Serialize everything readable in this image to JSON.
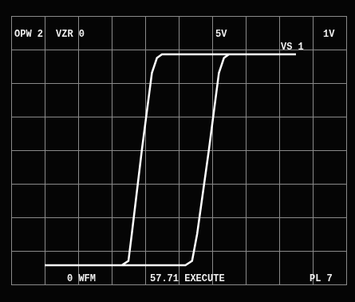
{
  "chart_data": {
    "type": "line",
    "x": [
      1.0,
      5.2,
      5.4,
      5.55,
      5.9,
      6.2,
      6.35,
      6.5,
      8.5,
      4.5,
      4.35,
      4.2,
      3.9,
      3.6,
      3.5,
      3.3,
      1.0
    ],
    "values": [
      0.57,
      0.57,
      0.7,
      1.5,
      4.0,
      6.3,
      6.75,
      6.86,
      6.86,
      6.86,
      6.75,
      6.3,
      4.0,
      1.5,
      0.7,
      0.57,
      0.57
    ],
    "color": "#ffffff",
    "xlim": [
      0,
      10
    ],
    "xticks": [
      0,
      1,
      2,
      3,
      4,
      5,
      6,
      7,
      8,
      9,
      10
    ],
    "ylim": [
      0,
      8
    ],
    "yticks": [
      0,
      1,
      2,
      3,
      4,
      5,
      6,
      7,
      8
    ],
    "grid": true,
    "tick_labels": false,
    "annotations": [
      "OPW 2",
      "VZR 0",
      "5V",
      "1V",
      "VS 1",
      "0 WFM",
      "57.71 EXECUTE",
      "PL 7"
    ]
  }
}
